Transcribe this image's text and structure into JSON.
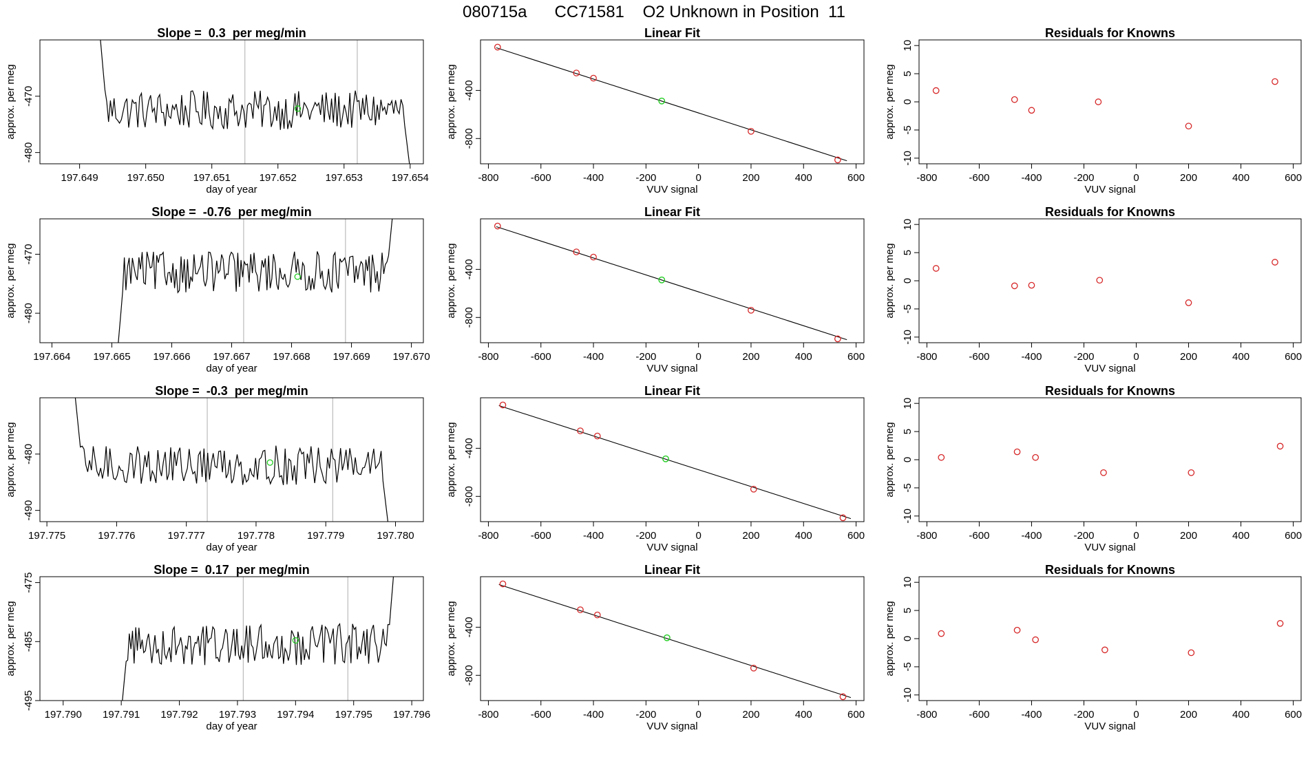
{
  "title": "080715a      CC71581    O2 Unknown in Position  11",
  "colors": {
    "trace": "#000000",
    "known": "#d62728",
    "unknown": "#22cc22",
    "marker_line": "#bbbbbb",
    "axis": "#000000"
  },
  "chart_data": [
    {
      "type": "line",
      "row": 0,
      "panel": "timeseries",
      "title": "Slope =  0.3  per meg/min",
      "xlabel": "day of year",
      "ylabel": "approx. per meg",
      "xlim": [
        197.6484,
        197.6542
      ],
      "ylim": [
        -482,
        -460
      ],
      "xticks": [
        "197.649",
        "197.650",
        "197.651",
        "197.652",
        "197.653",
        "197.654"
      ],
      "yticks": [
        "-470",
        "-480"
      ],
      "markers": [
        197.6515,
        197.6532
      ],
      "trace": {
        "x_start": 197.6493,
        "x_end": 197.654,
        "base": -472.5,
        "amp": 2.5,
        "start_value": -458,
        "end_value": -483
      },
      "unknown_points": [
        {
          "x": 197.6523,
          "y": -472.2
        }
      ]
    },
    {
      "type": "scatter",
      "row": 0,
      "panel": "linear-fit",
      "title": "Linear Fit",
      "xlabel": "VUV signal",
      "ylabel": "approx. per meg",
      "xlim": [
        -830,
        630
      ],
      "ylim": [
        -1010,
        20
      ],
      "xticks": [
        "-800",
        "-600",
        "-400",
        "-200",
        "0",
        "200",
        "400",
        "600"
      ],
      "yticks": [
        "-400",
        "-800"
      ],
      "fit_line": {
        "x": [
          -770,
          565
        ],
        "y": [
          -45,
          -985
        ]
      },
      "known_points": [
        {
          "x": -765,
          "y": -40
        },
        {
          "x": -465,
          "y": -255
        },
        {
          "x": -400,
          "y": -298
        },
        {
          "x": 200,
          "y": -740
        },
        {
          "x": 530,
          "y": -978
        }
      ],
      "unknown_points": [
        {
          "x": -140,
          "y": -488
        }
      ]
    },
    {
      "type": "scatter",
      "row": 0,
      "panel": "residuals",
      "title": "Residuals for Knowns",
      "xlabel": "VUV signal",
      "ylabel": "approx. per meg",
      "xlim": [
        -830,
        630
      ],
      "ylim": [
        -11,
        11
      ],
      "xticks": [
        "-800",
        "-600",
        "-400",
        "-200",
        "0",
        "200",
        "400",
        "600"
      ],
      "yticks": [
        "10",
        "5",
        "0",
        "-5",
        "-10"
      ],
      "known_points": [
        {
          "x": -765,
          "y": 2.0
        },
        {
          "x": -465,
          "y": 0.4
        },
        {
          "x": -400,
          "y": -1.5
        },
        {
          "x": -145,
          "y": 0.0
        },
        {
          "x": 200,
          "y": -4.3
        },
        {
          "x": 530,
          "y": 3.6
        }
      ]
    },
    {
      "type": "line",
      "row": 1,
      "panel": "timeseries",
      "title": "Slope =  -0.76  per meg/min",
      "xlabel": "day of year",
      "ylabel": "approx. per meg",
      "xlim": [
        197.6638,
        197.6702
      ],
      "ylim": [
        -485,
        -464
      ],
      "xticks": [
        "197.664",
        "197.665",
        "197.666",
        "197.667",
        "197.668",
        "197.669",
        "197.670"
      ],
      "yticks": [
        "-470",
        "-480"
      ],
      "markers": [
        197.6672,
        197.6689
      ],
      "trace": {
        "x_start": 197.6651,
        "x_end": 197.6697,
        "base": -473.0,
        "amp": 2.5,
        "start_value": -486,
        "end_value": -462
      },
      "unknown_points": [
        {
          "x": 197.6681,
          "y": -473.8
        }
      ]
    },
    {
      "type": "scatter",
      "row": 1,
      "panel": "linear-fit",
      "title": "Linear Fit",
      "xlabel": "VUV signal",
      "ylabel": "approx. per meg",
      "xlim": [
        -830,
        630
      ],
      "ylim": [
        -1010,
        20
      ],
      "xticks": [
        "-800",
        "-600",
        "-400",
        "-200",
        "0",
        "200",
        "400",
        "600"
      ],
      "yticks": [
        "-400",
        "-800"
      ],
      "fit_line": {
        "x": [
          -770,
          565
        ],
        "y": [
          -45,
          -985
        ]
      },
      "known_points": [
        {
          "x": -765,
          "y": -40
        },
        {
          "x": -465,
          "y": -255
        },
        {
          "x": -400,
          "y": -298
        },
        {
          "x": 200,
          "y": -740
        },
        {
          "x": 530,
          "y": -978
        }
      ],
      "unknown_points": [
        {
          "x": -140,
          "y": -488
        }
      ]
    },
    {
      "type": "scatter",
      "row": 1,
      "panel": "residuals",
      "title": "Residuals for Knowns",
      "xlabel": "VUV signal",
      "ylabel": "approx. per meg",
      "xlim": [
        -830,
        630
      ],
      "ylim": [
        -11,
        11
      ],
      "xticks": [
        "-800",
        "-600",
        "-400",
        "-200",
        "0",
        "200",
        "400",
        "600"
      ],
      "yticks": [
        "10",
        "5",
        "0",
        "-5",
        "-10"
      ],
      "known_points": [
        {
          "x": -765,
          "y": 2.2
        },
        {
          "x": -465,
          "y": -0.9
        },
        {
          "x": -400,
          "y": -0.8
        },
        {
          "x": -140,
          "y": 0.1
        },
        {
          "x": 200,
          "y": -3.9
        },
        {
          "x": 530,
          "y": 3.3
        }
      ]
    },
    {
      "type": "line",
      "row": 2,
      "panel": "timeseries",
      "title": "Slope =  -0.3  per meg/min",
      "xlabel": "day of year",
      "ylabel": "approx. per meg",
      "xlim": [
        197.7749,
        197.7804
      ],
      "ylim": [
        -492,
        -470
      ],
      "xticks": [
        "197.775",
        "197.776",
        "197.777",
        "197.778",
        "197.779",
        "197.780"
      ],
      "yticks": [
        "-480",
        "-490"
      ],
      "markers": [
        197.7773,
        197.7791
      ],
      "trace": {
        "x_start": 197.7754,
        "x_end": 197.7799,
        "base": -482.0,
        "amp": 2.5,
        "start_value": -469,
        "end_value": -493
      },
      "unknown_points": [
        {
          "x": 197.7782,
          "y": -481.5
        }
      ]
    },
    {
      "type": "scatter",
      "row": 2,
      "panel": "linear-fit",
      "title": "Linear Fit",
      "xlabel": "VUV signal",
      "ylabel": "approx. per meg",
      "xlim": [
        -830,
        630
      ],
      "ylim": [
        -1010,
        20
      ],
      "xticks": [
        "-800",
        "-600",
        "-400",
        "-200",
        "0",
        "200",
        "400",
        "600"
      ],
      "yticks": [
        "-400",
        "-800"
      ],
      "fit_line": {
        "x": [
          -760,
          580
        ],
        "y": [
          -45,
          -985
        ]
      },
      "known_points": [
        {
          "x": -745,
          "y": -40
        },
        {
          "x": -450,
          "y": -255
        },
        {
          "x": -385,
          "y": -298
        },
        {
          "x": 210,
          "y": -740
        },
        {
          "x": 550,
          "y": -978
        }
      ],
      "unknown_points": [
        {
          "x": -125,
          "y": -488
        }
      ]
    },
    {
      "type": "scatter",
      "row": 2,
      "panel": "residuals",
      "title": "Residuals for Knowns",
      "xlabel": "VUV signal",
      "ylabel": "approx. per meg",
      "xlim": [
        -830,
        630
      ],
      "ylim": [
        -11,
        11
      ],
      "xticks": [
        "-800",
        "-600",
        "-400",
        "-200",
        "0",
        "200",
        "400",
        "600"
      ],
      "yticks": [
        "10",
        "5",
        "0",
        "-5",
        "-10"
      ],
      "known_points": [
        {
          "x": -745,
          "y": 0.4
        },
        {
          "x": -455,
          "y": 1.4
        },
        {
          "x": -385,
          "y": 0.4
        },
        {
          "x": -125,
          "y": -2.3
        },
        {
          "x": 210,
          "y": -2.3
        },
        {
          "x": 550,
          "y": 2.4
        }
      ]
    },
    {
      "type": "line",
      "row": 3,
      "panel": "timeseries",
      "title": "Slope =  0.17  per meg/min",
      "xlabel": "day of year",
      "ylabel": "approx. per meg",
      "xlim": [
        197.7896,
        197.7962
      ],
      "ylim": [
        -495,
        -474
      ],
      "xticks": [
        "197.790",
        "197.791",
        "197.792",
        "197.793",
        "197.794",
        "197.795",
        "197.796"
      ],
      "yticks": [
        "-475",
        "-485",
        "-495"
      ],
      "markers": [
        197.7931,
        197.7949
      ],
      "trace": {
        "x_start": 197.791,
        "x_end": 197.7957,
        "base": -485.5,
        "amp": 2.5,
        "start_value": -497,
        "end_value": -472
      },
      "unknown_points": [
        {
          "x": 197.794,
          "y": -484.8
        }
      ]
    },
    {
      "type": "scatter",
      "row": 3,
      "panel": "linear-fit",
      "title": "Linear Fit",
      "xlabel": "VUV signal",
      "ylabel": "approx. per meg",
      "xlim": [
        -830,
        630
      ],
      "ylim": [
        -1010,
        20
      ],
      "xticks": [
        "-800",
        "-600",
        "-400",
        "-200",
        "0",
        "200",
        "400",
        "600"
      ],
      "yticks": [
        "-400",
        "-800"
      ],
      "fit_line": {
        "x": [
          -760,
          580
        ],
        "y": [
          -45,
          -985
        ]
      },
      "known_points": [
        {
          "x": -745,
          "y": -40
        },
        {
          "x": -450,
          "y": -255
        },
        {
          "x": -385,
          "y": -298
        },
        {
          "x": 210,
          "y": -740
        },
        {
          "x": 550,
          "y": -978
        }
      ],
      "unknown_points": [
        {
          "x": -120,
          "y": -488
        }
      ]
    },
    {
      "type": "scatter",
      "row": 3,
      "panel": "residuals",
      "title": "Residuals for Knowns",
      "xlabel": "VUV signal",
      "ylabel": "approx. per meg",
      "xlim": [
        -830,
        630
      ],
      "ylim": [
        -11,
        11
      ],
      "xticks": [
        "-800",
        "-600",
        "-400",
        "-200",
        "0",
        "200",
        "400",
        "600"
      ],
      "yticks": [
        "10",
        "5",
        "0",
        "-5",
        "-10"
      ],
      "known_points": [
        {
          "x": -745,
          "y": 0.9
        },
        {
          "x": -455,
          "y": 1.5
        },
        {
          "x": -385,
          "y": -0.2
        },
        {
          "x": -120,
          "y": -2.0
        },
        {
          "x": 210,
          "y": -2.5
        },
        {
          "x": 550,
          "y": 2.7
        }
      ]
    }
  ]
}
